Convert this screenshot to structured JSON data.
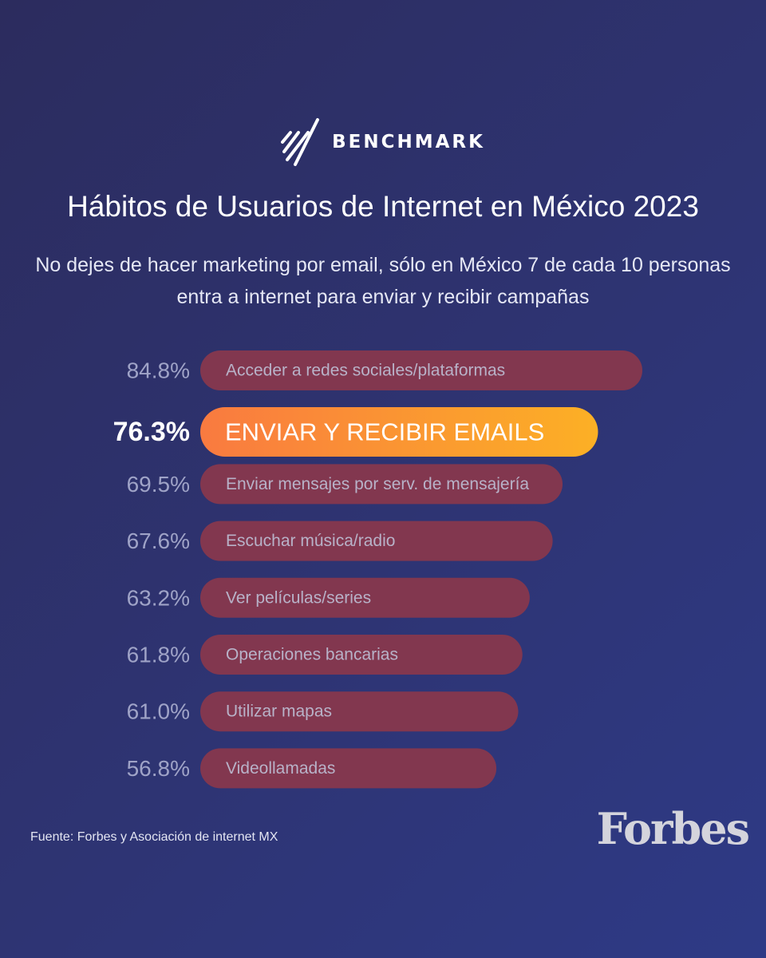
{
  "brand": {
    "name": "BENCHMARK",
    "logo_icon": "slash-lines-icon"
  },
  "title": "Hábitos de Usuarios de Internet en México 2023",
  "subtitle": "No dejes de hacer marketing por email, sólo en México 7 de cada 10 personas entra a internet para enviar y recibir campañas",
  "colors": {
    "bar": "#82374f",
    "bar_highlight_start": "#f97a40",
    "bar_highlight_end": "#fcb025",
    "label": "#9fa3c7",
    "bar_text": "#b8b2c8",
    "highlight_value": "#ffffff",
    "highlight_text": "#ffffff"
  },
  "chart_data": {
    "type": "bar",
    "orientation": "horizontal",
    "categories": [
      "Acceder a redes sociales/plataformas",
      "ENVIAR Y RECIBIR EMAILS",
      "Enviar mensajes por serv. de mensajería",
      "Escuchar música/radio",
      "Ver películas/series",
      "Operaciones bancarias",
      "Utilizar mapas",
      "Videollamadas"
    ],
    "values": [
      84.8,
      76.3,
      69.5,
      67.6,
      63.2,
      61.8,
      61.0,
      56.8
    ],
    "value_labels": [
      "84.8%",
      "76.3%",
      "69.5%",
      "67.6%",
      "63.2%",
      "61.8%",
      "61.0%",
      "56.8%"
    ],
    "highlight_index": 1,
    "unit": "%"
  },
  "footer": {
    "source": "Fuente: Forbes y Asociación de internet MX",
    "publisher": "Forbes"
  }
}
